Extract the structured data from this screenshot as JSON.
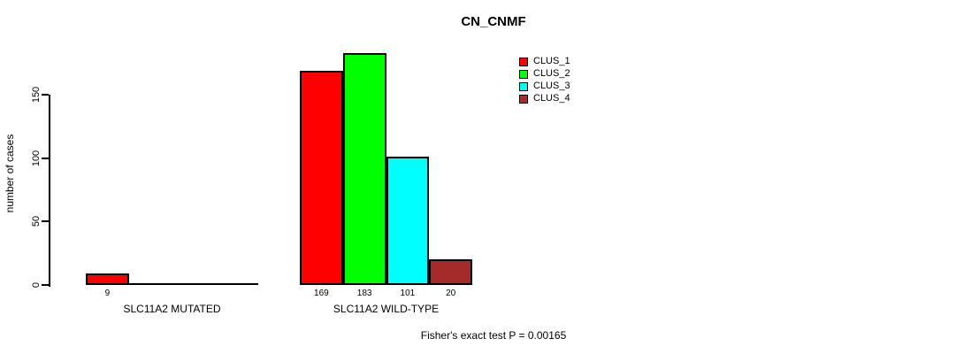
{
  "title": "CN_CNMF",
  "ylabel": "number of cases",
  "footer": "Fisher's exact test P = 0.00165",
  "chart_data": {
    "type": "bar",
    "grouped": true,
    "title": "CN_CNMF",
    "xlabel": "",
    "ylabel": "number of cases",
    "categories": [
      "SLC11A2 MUTATED",
      "SLC11A2 WILD-TYPE"
    ],
    "series": [
      {
        "name": "CLUS_1",
        "color": "#ff0000",
        "values": [
          9,
          169
        ]
      },
      {
        "name": "CLUS_2",
        "color": "#00ff00",
        "values": [
          0,
          183
        ]
      },
      {
        "name": "CLUS_3",
        "color": "#00ffff",
        "values": [
          0,
          101
        ]
      },
      {
        "name": "CLUS_4",
        "color": "#a52a2a",
        "values": [
          0,
          20
        ]
      }
    ],
    "yticks": [
      0,
      50,
      100,
      150
    ],
    "ylim": [
      0,
      190
    ],
    "grid": false,
    "legend_position": "inside-top-right",
    "bar_value_labels": [
      [
        "9",
        "",
        "",
        ""
      ],
      [
        "169",
        "183",
        "101",
        "20"
      ]
    ],
    "annotation": "Fisher's exact test P = 0.00165"
  }
}
